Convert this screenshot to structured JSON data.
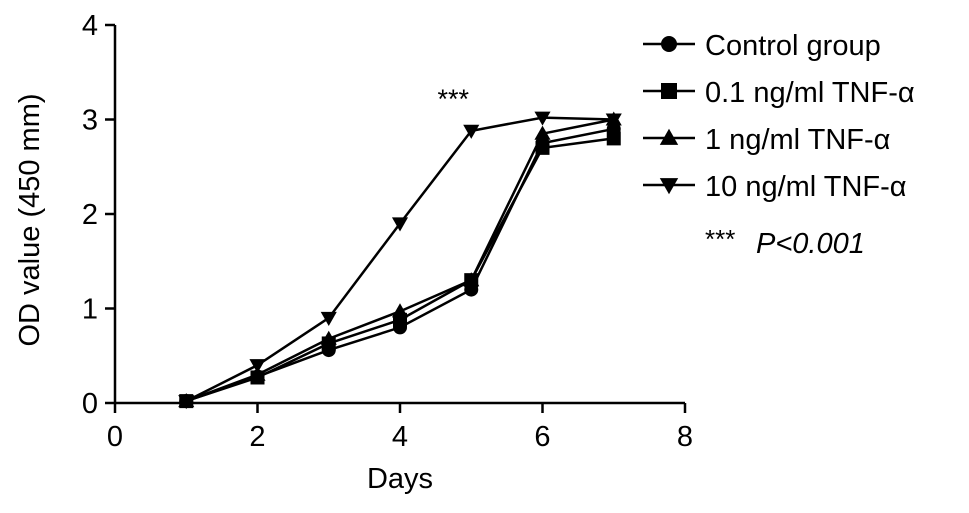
{
  "chart_data": {
    "type": "line",
    "xlabel": "Days",
    "ylabel": "OD value (450 mm)",
    "xlim": [
      0,
      8
    ],
    "ylim": [
      0,
      4
    ],
    "xticks": [
      "0",
      "2",
      "4",
      "6",
      "8"
    ],
    "yticks": [
      "0",
      "1",
      "2",
      "3",
      "4"
    ],
    "grid": false,
    "legend_position": "right",
    "x": [
      1,
      2,
      3,
      4,
      5,
      6,
      7
    ],
    "series": [
      {
        "name": "Control group",
        "marker": "circle",
        "values": [
          0.02,
          0.28,
          0.56,
          0.8,
          1.2,
          2.75,
          2.9
        ]
      },
      {
        "name": "0.1 ng/ml TNF-α",
        "marker": "square",
        "values": [
          0.02,
          0.27,
          0.63,
          0.88,
          1.3,
          2.7,
          2.8
        ]
      },
      {
        "name": "1 ng/ml TNF-α",
        "marker": "triangle-up",
        "values": [
          0.02,
          0.3,
          0.68,
          0.97,
          1.3,
          2.85,
          3.0
        ]
      },
      {
        "name": "10 ng/ml TNF-α",
        "marker": "triangle-down",
        "values": [
          0.02,
          0.4,
          0.9,
          1.9,
          2.88,
          3.02,
          3.0
        ]
      }
    ],
    "annotations": [
      {
        "text": "***",
        "x": 5
      }
    ],
    "significance_note": {
      "stars": "***",
      "text": "P<0.001"
    }
  }
}
